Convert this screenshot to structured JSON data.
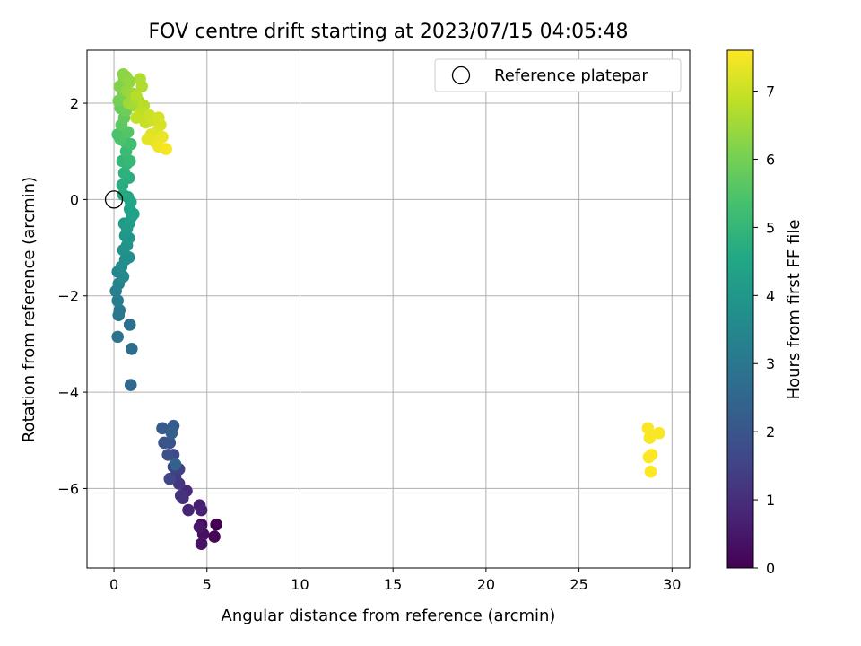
{
  "chart_data": {
    "type": "scatter",
    "title": "FOV centre drift starting at 2023/07/15 04:05:48",
    "xlabel": "Angular distance from reference (arcmin)",
    "ylabel": "Rotation from reference (arcmin)",
    "xlim": [
      -1.45,
      30.95
    ],
    "ylim": [
      -7.65,
      3.1
    ],
    "xticks": [
      0,
      5,
      10,
      15,
      20,
      25,
      30
    ],
    "xtick_labels": [
      "0",
      "5",
      "10",
      "15",
      "20",
      "25",
      "30"
    ],
    "yticks": [
      -6,
      -4,
      -2,
      0,
      2
    ],
    "ytick_labels": [
      "−6",
      "−4",
      "−2",
      "0",
      "2"
    ],
    "grid": true,
    "legend": {
      "location": "upper right",
      "entries": [
        "Reference platepar"
      ]
    },
    "colorbar": {
      "label": "Hours from first FF file",
      "colormap": "viridis",
      "range": [
        0,
        7.6
      ],
      "ticks": [
        0,
        1,
        2,
        3,
        4,
        5,
        6,
        7
      ],
      "tick_labels": [
        "0",
        "1",
        "2",
        "3",
        "4",
        "5",
        "6",
        "7"
      ]
    },
    "reference_point": {
      "x": 0,
      "y": 0,
      "label": "Reference platepar"
    },
    "series": [
      {
        "marker": "filled circle, colored by hours",
        "points": [
          [
            5.5,
            -6.75,
            0.0
          ],
          [
            5.4,
            -7.0,
            0.1
          ],
          [
            4.7,
            -6.75,
            0.2
          ],
          [
            4.8,
            -6.95,
            0.3
          ],
          [
            4.7,
            -7.15,
            0.4
          ],
          [
            4.6,
            -6.8,
            0.5
          ],
          [
            4.6,
            -6.35,
            0.6
          ],
          [
            4.7,
            -6.45,
            0.7
          ],
          [
            4.0,
            -6.45,
            0.8
          ],
          [
            3.9,
            -6.05,
            0.9
          ],
          [
            3.7,
            -6.2,
            1.0
          ],
          [
            3.6,
            -6.15,
            1.1
          ],
          [
            3.5,
            -5.9,
            1.2
          ],
          [
            3.3,
            -5.75,
            1.3
          ],
          [
            3.5,
            -5.6,
            1.4
          ],
          [
            3.2,
            -5.55,
            1.5
          ],
          [
            3.0,
            -5.8,
            1.6
          ],
          [
            3.2,
            -5.3,
            1.7
          ],
          [
            2.9,
            -5.3,
            1.8
          ],
          [
            3.0,
            -5.05,
            1.9
          ],
          [
            2.7,
            -5.05,
            2.0
          ],
          [
            2.6,
            -4.75,
            2.1
          ],
          [
            3.2,
            -4.7,
            2.2
          ],
          [
            3.1,
            -4.85,
            2.3
          ],
          [
            3.3,
            -5.5,
            2.4
          ],
          [
            0.9,
            -3.85,
            2.55
          ],
          [
            0.95,
            -3.1,
            2.7
          ],
          [
            0.85,
            -2.6,
            2.8
          ],
          [
            0.2,
            -2.85,
            2.9
          ],
          [
            0.25,
            -2.4,
            3.0
          ],
          [
            0.3,
            -2.3,
            3.05
          ],
          [
            0.2,
            -2.1,
            3.15
          ],
          [
            0.1,
            -1.9,
            3.25
          ],
          [
            0.25,
            -1.75,
            3.35
          ],
          [
            0.2,
            -1.5,
            3.45
          ],
          [
            0.5,
            -1.6,
            3.55
          ],
          [
            0.4,
            -1.4,
            3.6
          ],
          [
            0.6,
            -1.25,
            3.7
          ],
          [
            0.8,
            -1.2,
            3.75
          ],
          [
            0.5,
            -1.05,
            3.8
          ],
          [
            0.7,
            -0.95,
            3.85
          ],
          [
            0.6,
            -0.75,
            3.95
          ],
          [
            0.8,
            -0.8,
            4.0
          ],
          [
            0.7,
            -0.6,
            4.05
          ],
          [
            0.55,
            -0.5,
            4.1
          ],
          [
            0.8,
            -0.5,
            4.15
          ],
          [
            0.95,
            -0.35,
            4.2
          ],
          [
            0.85,
            -0.2,
            4.3
          ],
          [
            1.05,
            -0.3,
            4.35
          ],
          [
            0.9,
            -0.05,
            4.45
          ],
          [
            0.75,
            0.05,
            4.5
          ],
          [
            0.5,
            0.1,
            4.6
          ],
          [
            0.45,
            0.3,
            4.7
          ],
          [
            0.8,
            0.45,
            4.75
          ],
          [
            0.55,
            0.55,
            4.85
          ],
          [
            0.7,
            0.75,
            4.95
          ],
          [
            0.45,
            0.8,
            5.0
          ],
          [
            0.85,
            0.8,
            5.05
          ],
          [
            0.65,
            1.0,
            5.15
          ],
          [
            0.9,
            1.15,
            5.25
          ],
          [
            0.6,
            1.2,
            5.3
          ],
          [
            0.2,
            1.35,
            5.4
          ],
          [
            0.35,
            1.25,
            5.45
          ],
          [
            0.75,
            1.4,
            5.55
          ],
          [
            0.4,
            1.55,
            5.65
          ],
          [
            0.55,
            1.7,
            5.75
          ],
          [
            0.35,
            1.9,
            5.8
          ],
          [
            0.65,
            1.85,
            5.9
          ],
          [
            0.25,
            2.05,
            6.0
          ],
          [
            0.5,
            2.2,
            6.05
          ],
          [
            0.3,
            2.35,
            6.15
          ],
          [
            0.55,
            2.5,
            6.2
          ],
          [
            0.5,
            2.6,
            6.25
          ],
          [
            0.65,
            2.55,
            6.3
          ],
          [
            0.85,
            2.45,
            6.35
          ],
          [
            0.7,
            2.25,
            6.4
          ],
          [
            1.0,
            2.2,
            6.45
          ],
          [
            0.8,
            2.0,
            6.5
          ],
          [
            1.1,
            1.95,
            6.55
          ],
          [
            1.3,
            2.05,
            6.6
          ],
          [
            1.4,
            2.5,
            6.65
          ],
          [
            1.5,
            2.35,
            6.7
          ],
          [
            1.2,
            2.15,
            6.75
          ],
          [
            1.6,
            1.95,
            6.8
          ],
          [
            1.45,
            1.8,
            6.85
          ],
          [
            1.2,
            1.7,
            6.9
          ],
          [
            1.7,
            1.6,
            6.95
          ],
          [
            1.9,
            1.75,
            7.0
          ],
          [
            2.1,
            1.65,
            7.05
          ],
          [
            2.4,
            1.7,
            7.1
          ],
          [
            2.5,
            1.55,
            7.15
          ],
          [
            2.3,
            1.4,
            7.2
          ],
          [
            2.0,
            1.35,
            7.25
          ],
          [
            1.8,
            1.25,
            7.3
          ],
          [
            2.2,
            1.2,
            7.35
          ],
          [
            2.6,
            1.3,
            7.4
          ],
          [
            2.4,
            1.1,
            7.45
          ],
          [
            2.8,
            1.05,
            7.5
          ],
          [
            28.7,
            -4.75,
            7.55
          ],
          [
            29.3,
            -4.85,
            7.55
          ],
          [
            28.8,
            -4.95,
            7.55
          ],
          [
            28.9,
            -5.3,
            7.6
          ],
          [
            28.75,
            -5.35,
            7.6
          ],
          [
            28.85,
            -5.65,
            7.6
          ]
        ]
      }
    ]
  }
}
